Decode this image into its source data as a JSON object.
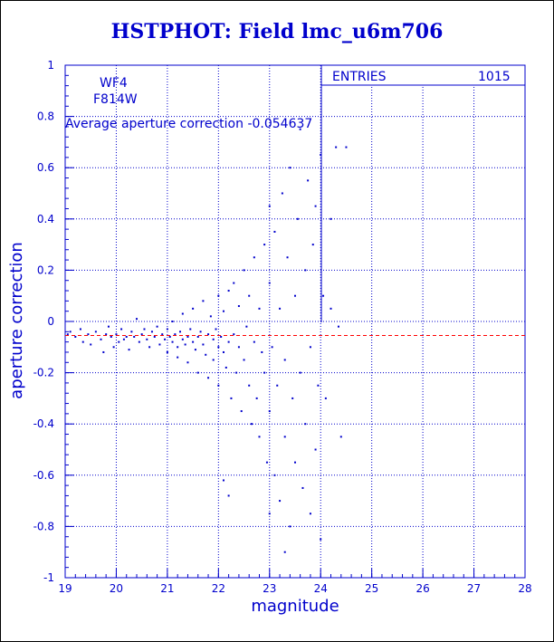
{
  "title": "HSTPHOT: Field lmc_u6m706",
  "chart_data": {
    "type": "scatter",
    "title": "HSTPHOT: Field lmc_u6m706",
    "xlabel": "magnitude",
    "ylabel": "aperture correction",
    "xlim": [
      19,
      28
    ],
    "ylim": [
      -1,
      1
    ],
    "xticks": [
      "19",
      "20",
      "21",
      "22",
      "23",
      "24",
      "25",
      "26",
      "27",
      "28"
    ],
    "yticks": [
      "-1",
      "-0.8",
      "-0.6",
      "-0.4",
      "-0.2",
      "0",
      "0.2",
      "0.4",
      "0.6",
      "0.8",
      "1"
    ],
    "grid": true,
    "annotations": {
      "chip": "WF4",
      "filter": "F814W",
      "average_label": "Average aperture correction  -0.054637"
    },
    "stats": {
      "label": "ENTRIES",
      "value": "1015"
    },
    "average_line": -0.054637,
    "point_color": "#0000cc",
    "line_color": "#ff0000",
    "points": [
      [
        19.05,
        -0.05
      ],
      [
        19.1,
        -0.04
      ],
      [
        19.2,
        -0.06
      ],
      [
        19.3,
        -0.03
      ],
      [
        19.35,
        -0.08
      ],
      [
        19.45,
        -0.05
      ],
      [
        19.5,
        -0.09
      ],
      [
        19.6,
        -0.04
      ],
      [
        19.7,
        -0.07
      ],
      [
        19.75,
        -0.12
      ],
      [
        19.8,
        -0.05
      ],
      [
        19.85,
        -0.02
      ],
      [
        19.9,
        -0.06
      ],
      [
        19.95,
        -0.1
      ],
      [
        20.0,
        -0.05
      ],
      [
        20.05,
        -0.08
      ],
      [
        20.1,
        -0.03
      ],
      [
        20.15,
        -0.07
      ],
      [
        20.2,
        -0.06
      ],
      [
        20.25,
        -0.11
      ],
      [
        20.3,
        -0.04
      ],
      [
        20.35,
        -0.06
      ],
      [
        20.4,
        0.01
      ],
      [
        20.45,
        -0.08
      ],
      [
        20.5,
        -0.05
      ],
      [
        20.55,
        -0.03
      ],
      [
        20.6,
        -0.07
      ],
      [
        20.65,
        -0.1
      ],
      [
        20.7,
        -0.04
      ],
      [
        20.75,
        -0.06
      ],
      [
        20.8,
        -0.02
      ],
      [
        20.85,
        -0.09
      ],
      [
        20.9,
        -0.05
      ],
      [
        20.95,
        -0.07
      ],
      [
        21.0,
        -0.03
      ],
      [
        21.0,
        -0.12
      ],
      [
        21.05,
        -0.06
      ],
      [
        21.1,
        -0.08
      ],
      [
        21.1,
        0.0
      ],
      [
        21.15,
        -0.05
      ],
      [
        21.2,
        -0.1
      ],
      [
        21.2,
        -0.14
      ],
      [
        21.25,
        -0.04
      ],
      [
        21.3,
        -0.07
      ],
      [
        21.3,
        0.03
      ],
      [
        21.35,
        -0.09
      ],
      [
        21.4,
        -0.06
      ],
      [
        21.4,
        -0.16
      ],
      [
        21.45,
        -0.03
      ],
      [
        21.5,
        -0.08
      ],
      [
        21.5,
        0.05
      ],
      [
        21.55,
        -0.11
      ],
      [
        21.6,
        -0.06
      ],
      [
        21.6,
        -0.2
      ],
      [
        21.65,
        -0.04
      ],
      [
        21.7,
        -0.09
      ],
      [
        21.7,
        0.08
      ],
      [
        21.75,
        -0.13
      ],
      [
        21.8,
        -0.05
      ],
      [
        21.8,
        -0.22
      ],
      [
        21.85,
        0.02
      ],
      [
        21.9,
        -0.07
      ],
      [
        21.9,
        -0.15
      ],
      [
        21.95,
        -0.03
      ],
      [
        22.0,
        -0.1
      ],
      [
        22.0,
        0.1
      ],
      [
        22.0,
        -0.25
      ],
      [
        22.05,
        -0.06
      ],
      [
        22.1,
        -0.12
      ],
      [
        22.1,
        0.04
      ],
      [
        22.15,
        -0.18
      ],
      [
        22.2,
        -0.08
      ],
      [
        22.2,
        0.12
      ],
      [
        22.25,
        -0.3
      ],
      [
        22.3,
        -0.05
      ],
      [
        22.3,
        0.15
      ],
      [
        22.35,
        -0.2
      ],
      [
        22.4,
        -0.1
      ],
      [
        22.4,
        0.06
      ],
      [
        22.45,
        -0.35
      ],
      [
        22.5,
        -0.15
      ],
      [
        22.5,
        0.2
      ],
      [
        22.55,
        -0.02
      ],
      [
        22.6,
        -0.25
      ],
      [
        22.6,
        0.1
      ],
      [
        22.65,
        -0.4
      ],
      [
        22.7,
        -0.08
      ],
      [
        22.7,
        0.25
      ],
      [
        22.75,
        -0.3
      ],
      [
        22.8,
        0.05
      ],
      [
        22.8,
        -0.45
      ],
      [
        22.85,
        -0.12
      ],
      [
        22.9,
        0.3
      ],
      [
        22.9,
        -0.2
      ],
      [
        22.95,
        -0.55
      ],
      [
        23.0,
        0.15
      ],
      [
        23.0,
        -0.35
      ],
      [
        23.0,
        0.45
      ],
      [
        23.05,
        -0.1
      ],
      [
        23.1,
        -0.6
      ],
      [
        23.1,
        0.35
      ],
      [
        23.15,
        -0.25
      ],
      [
        23.2,
        0.05
      ],
      [
        23.2,
        -0.7
      ],
      [
        23.25,
        0.5
      ],
      [
        23.3,
        -0.15
      ],
      [
        23.3,
        -0.45
      ],
      [
        23.35,
        0.25
      ],
      [
        23.4,
        -0.8
      ],
      [
        23.4,
        0.6
      ],
      [
        23.45,
        -0.3
      ],
      [
        23.5,
        0.1
      ],
      [
        23.5,
        -0.55
      ],
      [
        23.55,
        0.4
      ],
      [
        23.6,
        -0.2
      ],
      [
        23.6,
        0.75
      ],
      [
        23.65,
        -0.65
      ],
      [
        23.7,
        0.2
      ],
      [
        23.7,
        -0.4
      ],
      [
        23.75,
        0.55
      ],
      [
        23.8,
        -0.1
      ],
      [
        23.8,
        -0.75
      ],
      [
        23.85,
        0.3
      ],
      [
        23.9,
        -0.5
      ],
      [
        23.9,
        0.45
      ],
      [
        23.95,
        -0.25
      ],
      [
        24.0,
        0.65
      ],
      [
        24.0,
        -0.85
      ],
      [
        24.05,
        0.1
      ],
      [
        24.1,
        -0.3
      ],
      [
        24.2,
        0.4
      ],
      [
        24.3,
        0.68
      ],
      [
        24.35,
        -0.02
      ],
      [
        24.4,
        -0.45
      ],
      [
        24.5,
        0.68
      ],
      [
        22.2,
        -0.68
      ],
      [
        22.1,
        -0.62
      ],
      [
        23.3,
        -0.9
      ],
      [
        23.0,
        -0.75
      ],
      [
        24.2,
        0.05
      ]
    ]
  }
}
